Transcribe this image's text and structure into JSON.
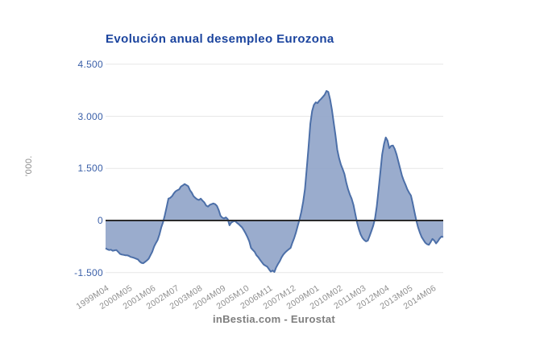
{
  "title": "Evolución anual desempleo Eurozona",
  "y_axis_unit_label": "'000.",
  "footer_credit": "inBestia.com - Eurostat",
  "colors": {
    "title": "#1b449e",
    "y_tick_labels": "#3a5fa8",
    "x_tick_labels": "#8f8f8f",
    "credits": "#7e7e7e",
    "gridline": "#e7e7e7",
    "zero_line": "#2b2b2b",
    "area_fill": "#8fa3c8",
    "line_stroke": "#4c6fa8"
  },
  "chart_data": {
    "type": "area",
    "title": "Evolución anual desempleo Eurozona",
    "xlabel": "",
    "ylabel": "'000.",
    "ylim": [
      -1500,
      4500
    ],
    "grid": true,
    "legend": false,
    "baseline": 0,
    "x_start": "1999M04",
    "x_frequency": "monthly",
    "x_tick_labels": [
      "1999M04",
      "2000M05",
      "2001M06",
      "2002M07",
      "2003M08",
      "2004M09",
      "2005M10",
      "2006M11",
      "2007M12",
      "2009M01",
      "2010M02",
      "2011M03",
      "2012M04",
      "2013M05",
      "2014M06"
    ],
    "x_tick_interval_months": 13,
    "y_ticks": [
      {
        "label": "4.500",
        "value": 4500
      },
      {
        "label": "3.000",
        "value": 3000
      },
      {
        "label": "1.500",
        "value": 1500
      },
      {
        "label": "0",
        "value": 0
      },
      {
        "label": "-1.500",
        "value": -1500
      }
    ],
    "series": [
      {
        "name": "Evolución anual desempleo Eurozona",
        "values": [
          -800,
          -830,
          -850,
          -840,
          -870,
          -860,
          -850,
          -900,
          -960,
          -980,
          -990,
          -1000,
          -1000,
          -1020,
          -1050,
          -1060,
          -1080,
          -1100,
          -1120,
          -1180,
          -1220,
          -1230,
          -1190,
          -1150,
          -1100,
          -1000,
          -900,
          -750,
          -650,
          -560,
          -400,
          -200,
          -50,
          150,
          390,
          630,
          650,
          700,
          780,
          840,
          870,
          900,
          980,
          1010,
          1050,
          1020,
          990,
          870,
          800,
          700,
          650,
          610,
          590,
          630,
          570,
          520,
          430,
          400,
          450,
          470,
          490,
          470,
          420,
          300,
          140,
          80,
          60,
          90,
          40,
          -140,
          -60,
          -30,
          -10,
          -60,
          -100,
          -150,
          -200,
          -280,
          -370,
          -480,
          -600,
          -790,
          -850,
          -900,
          -1000,
          -1055,
          -1130,
          -1200,
          -1265,
          -1300,
          -1330,
          -1405,
          -1470,
          -1440,
          -1480,
          -1350,
          -1250,
          -1170,
          -1060,
          -980,
          -920,
          -870,
          -830,
          -790,
          -640,
          -510,
          -350,
          -150,
          30,
          250,
          540,
          900,
          1490,
          2100,
          2790,
          3150,
          3330,
          3400,
          3380,
          3450,
          3500,
          3560,
          3620,
          3730,
          3700,
          3490,
          3200,
          2830,
          2450,
          2040,
          1800,
          1610,
          1480,
          1340,
          1100,
          900,
          750,
          630,
          450,
          200,
          -50,
          -250,
          -400,
          -500,
          -560,
          -600,
          -580,
          -450,
          -300,
          -150,
          50,
          400,
          900,
          1400,
          1900,
          2200,
          2390,
          2300,
          2080,
          2150,
          2160,
          2060,
          1900,
          1700,
          1500,
          1300,
          1150,
          1030,
          900,
          800,
          720,
          500,
          250,
          0,
          -200,
          -350,
          -480,
          -560,
          -640,
          -680,
          -700,
          -620,
          -530,
          -580,
          -660,
          -600,
          -520,
          -460,
          -480
        ]
      }
    ]
  }
}
